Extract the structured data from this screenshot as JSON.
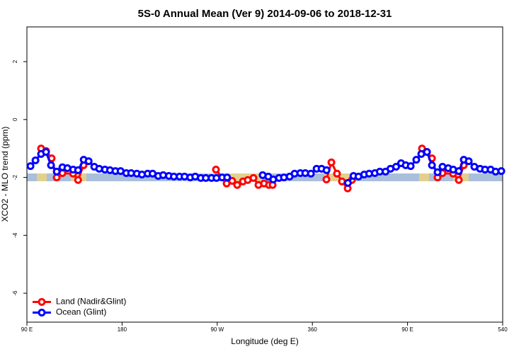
{
  "chart_data": {
    "type": "line",
    "title": "5S-0 Annual Mean (Ver 9)   2014-09-06 to 2018-12-31",
    "xlabel": "Longitude (deg E)",
    "ylabel": "XCO2 - MLO trend (ppm)",
    "xlim": [
      90,
      540
    ],
    "ylim": [
      -7,
      3.2
    ],
    "xticks": [
      {
        "value": 90,
        "label": "90 E"
      },
      180,
      {
        "value": 270,
        "label": "90 W"
      },
      360,
      {
        "value": 450,
        "label": "90 E"
      },
      540
    ],
    "yticks": [
      -6,
      -4,
      -2,
      0,
      2
    ],
    "legend": "bottom-left",
    "series": [
      {
        "name": "Land (Nadir&Glint)",
        "color": "#ff0000",
        "x": [
          103.4,
          108.1,
          113.4,
          118.2,
          123.6,
          133.7,
          138.4,
          143.6,
          null,
          268.8,
          278.9,
          284.2,
          288.9,
          294.3,
          298.9,
          304.3,
          309.0,
          314.3,
          319.0,
          322.4,
          null,
          373.3,
          378.0,
          383.3,
          388.0,
          393.4,
          397.4,
          null,
          463.7,
          468.4,
          473.1,
          478.4,
          483.1,
          493.1,
          498.5,
          503.2
        ],
        "values": [
          -1.0,
          -1.09,
          -1.34,
          -2.0,
          -1.85,
          -1.87,
          -2.09,
          -1.58,
          null,
          -1.73,
          -2.21,
          -2.12,
          -2.26,
          -2.14,
          -2.09,
          -2.02,
          -2.26,
          -2.21,
          -2.26,
          -2.26,
          null,
          -2.07,
          -1.48,
          -1.87,
          -2.14,
          -2.38,
          -2.09,
          null,
          -1.0,
          -1.12,
          -1.34,
          -2.0,
          -1.85,
          -1.87,
          -2.09,
          -1.58
        ]
      },
      {
        "name": "Ocean (Glint)",
        "color": "#0000ff",
        "x": [
          93.4,
          98.1,
          103.4,
          108.1,
          112.8,
          118.2,
          123.6,
          128.3,
          133.7,
          138.4,
          143.7,
          148.4,
          153.7,
          158.4,
          163.8,
          168.6,
          173.7,
          178.6,
          184.0,
          188.6,
          194.0,
          198.8,
          204.2,
          208.9,
          214.2,
          218.9,
          224.3,
          229.0,
          234.4,
          239.1,
          244.5,
          249.2,
          254.5,
          259.2,
          264.6,
          269.3,
          274.7,
          279.4,
          null,
          313.0,
          318.3,
          323.0,
          328.4,
          333.1,
          338.5,
          343.2,
          348.6,
          353.3,
          358.6,
          364.0,
          368.7,
          373.4,
          null,
          393.6,
          398.9,
          403.6,
          409.0,
          413.7,
          419.1,
          423.8,
          429.2,
          433.9,
          439.2,
          443.9,
          448.3,
          453.0,
          458.3,
          463.0,
          468.4,
          473.1,
          478.4,
          483.1,
          488.5,
          493.2,
          498.5,
          503.2,
          507.9,
          513.2,
          518.6,
          523.3,
          528.6,
          533.3,
          538.7
        ],
        "values": [
          -1.61,
          -1.41,
          -1.19,
          -1.12,
          -1.58,
          -1.8,
          -1.65,
          -1.68,
          -1.73,
          -1.75,
          -1.39,
          -1.44,
          -1.63,
          -1.7,
          -1.73,
          -1.75,
          -1.78,
          -1.78,
          -1.85,
          -1.85,
          -1.87,
          -1.9,
          -1.87,
          -1.87,
          -1.95,
          -1.92,
          -1.95,
          -1.97,
          -1.97,
          -1.97,
          -2.0,
          -1.97,
          -2.02,
          -2.02,
          -2.02,
          -2.02,
          -2.0,
          -2.0,
          null,
          -1.92,
          -1.97,
          -2.07,
          -2.02,
          -2.0,
          -1.97,
          -1.87,
          -1.85,
          -1.85,
          -1.87,
          -1.7,
          -1.7,
          -1.75,
          null,
          -2.19,
          -1.95,
          -1.97,
          -1.9,
          -1.87,
          -1.85,
          -1.8,
          -1.8,
          -1.7,
          -1.63,
          -1.51,
          -1.58,
          -1.61,
          -1.39,
          -1.19,
          -1.12,
          -1.58,
          -1.82,
          -1.63,
          -1.68,
          -1.73,
          -1.78,
          -1.39,
          -1.44,
          -1.63,
          -1.7,
          -1.73,
          -1.73,
          -1.8,
          -1.78
        ]
      }
    ]
  }
}
